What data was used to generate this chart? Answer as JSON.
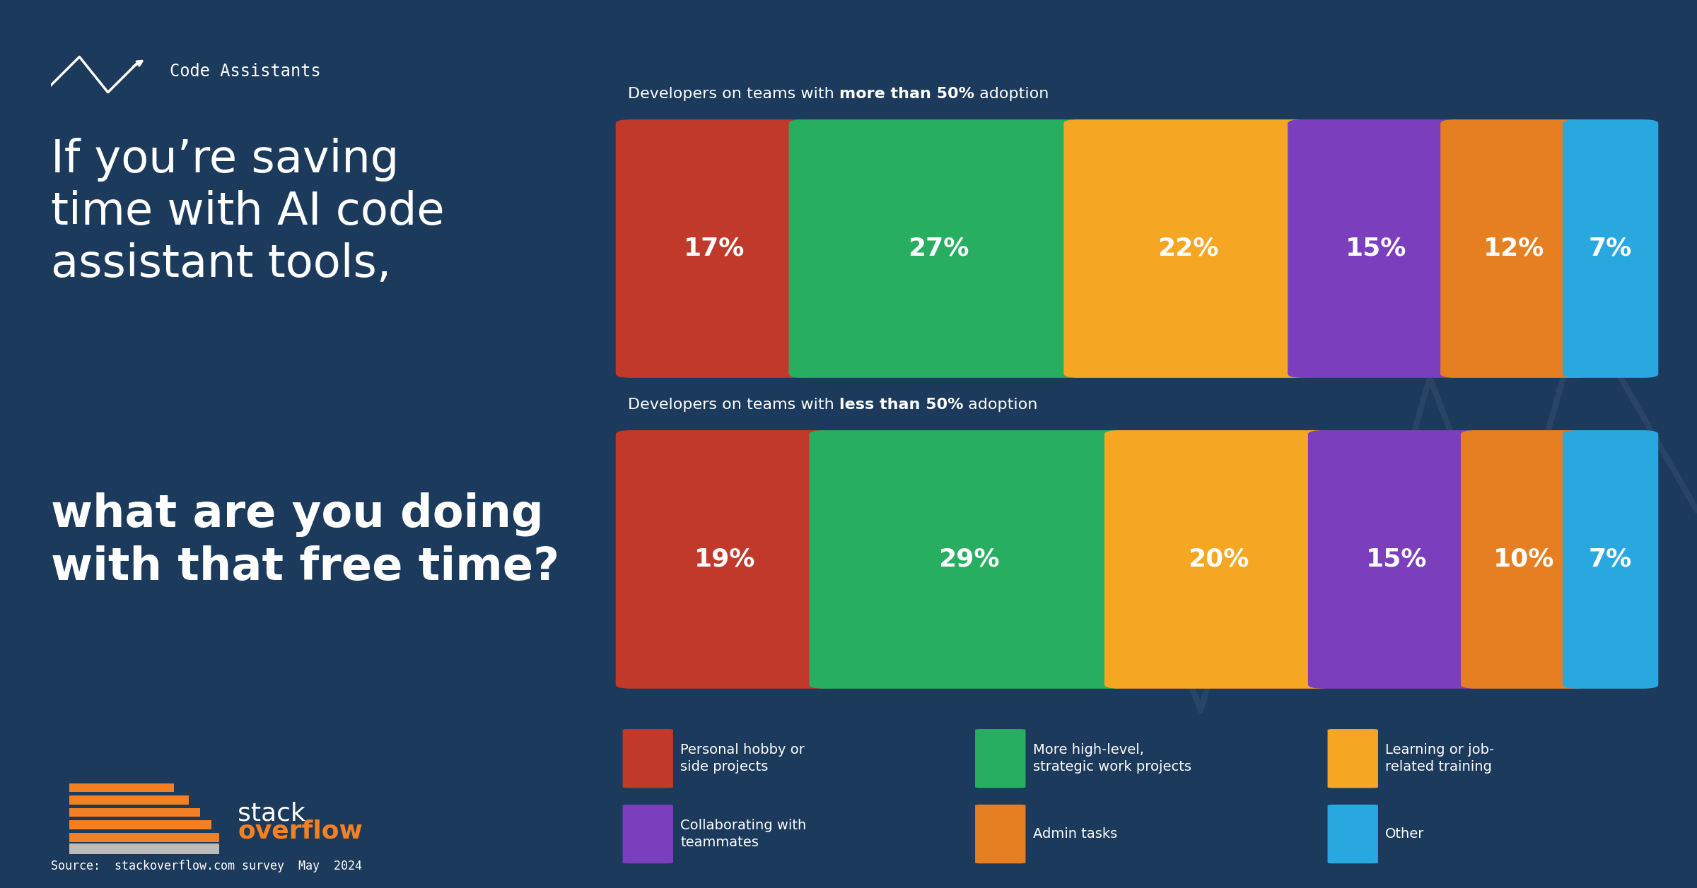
{
  "background_color": "#1b3a5c",
  "title_light": "If you’re saving\ntime with AI code\nassistant tools,",
  "title_bold": "what are you doing\nwith that free time?",
  "tag_text": "Code Assistants",
  "source_text": "Source:  stackoverflow.com survey  May  2024",
  "chart1_title_normal": "Developers on teams with ",
  "chart1_title_bold": "more than 50%",
  "chart1_title_end": " adoption",
  "chart2_title_normal": "Developers on teams with ",
  "chart2_title_bold": "less than 50%",
  "chart2_title_end": " adoption",
  "colors": [
    "#c0392b",
    "#27ae60",
    "#f5a623",
    "#7b3fbe",
    "#e67e22",
    "#29a8e0"
  ],
  "chart1_values": [
    17,
    27,
    22,
    15,
    12,
    7
  ],
  "chart2_values": [
    19,
    29,
    20,
    15,
    10,
    7
  ],
  "legend_items": [
    [
      "Personal hobby or\nside projects",
      "#c0392b"
    ],
    [
      "More high-level,\nstrategic work projects",
      "#27ae60"
    ],
    [
      "Learning or job-\nrelated training",
      "#f5a623"
    ],
    [
      "Collaborating with\nteammates",
      "#7b3fbe"
    ],
    [
      "Admin tasks",
      "#e67e22"
    ],
    [
      "Other",
      "#29a8e0"
    ]
  ]
}
